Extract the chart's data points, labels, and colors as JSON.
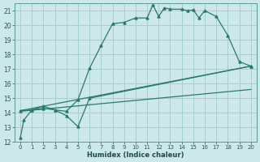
{
  "xlabel": "Humidex (Indice chaleur)",
  "xlim": [
    -0.5,
    20.5
  ],
  "ylim": [
    12,
    21.5
  ],
  "xticks": [
    0,
    1,
    2,
    3,
    4,
    5,
    6,
    7,
    8,
    9,
    10,
    11,
    12,
    13,
    14,
    15,
    16,
    17,
    18,
    19,
    20
  ],
  "yticks": [
    12,
    13,
    14,
    15,
    16,
    17,
    18,
    19,
    20,
    21
  ],
  "bg_color": "#cce8e8",
  "grid_color": "#a8cece",
  "line_color": "#2a7a6a",
  "series1_x": [
    0,
    0.3,
    1,
    2,
    3,
    4,
    5,
    6,
    7,
    8,
    9,
    10,
    11,
    11.5,
    12,
    12.5,
    13,
    14,
    14.5,
    15,
    15.5,
    16,
    17,
    18,
    19,
    20
  ],
  "series1_y": [
    12.3,
    13.5,
    14.2,
    14.3,
    14.2,
    14.1,
    14.9,
    17.05,
    18.6,
    20.1,
    20.2,
    20.5,
    20.5,
    21.4,
    20.6,
    21.2,
    21.1,
    21.1,
    21.0,
    21.05,
    20.5,
    21.0,
    20.6,
    19.3,
    17.5,
    17.2
  ],
  "series2_x": [
    0,
    1,
    2,
    3,
    4,
    5,
    6,
    20
  ],
  "series2_y": [
    14.15,
    14.2,
    14.45,
    14.2,
    13.8,
    13.05,
    15.0,
    17.2
  ],
  "series3_x": [
    0,
    20
  ],
  "series3_y": [
    14.1,
    15.6
  ],
  "series4_x": [
    0,
    20
  ],
  "series4_y": [
    14.15,
    17.2
  ]
}
